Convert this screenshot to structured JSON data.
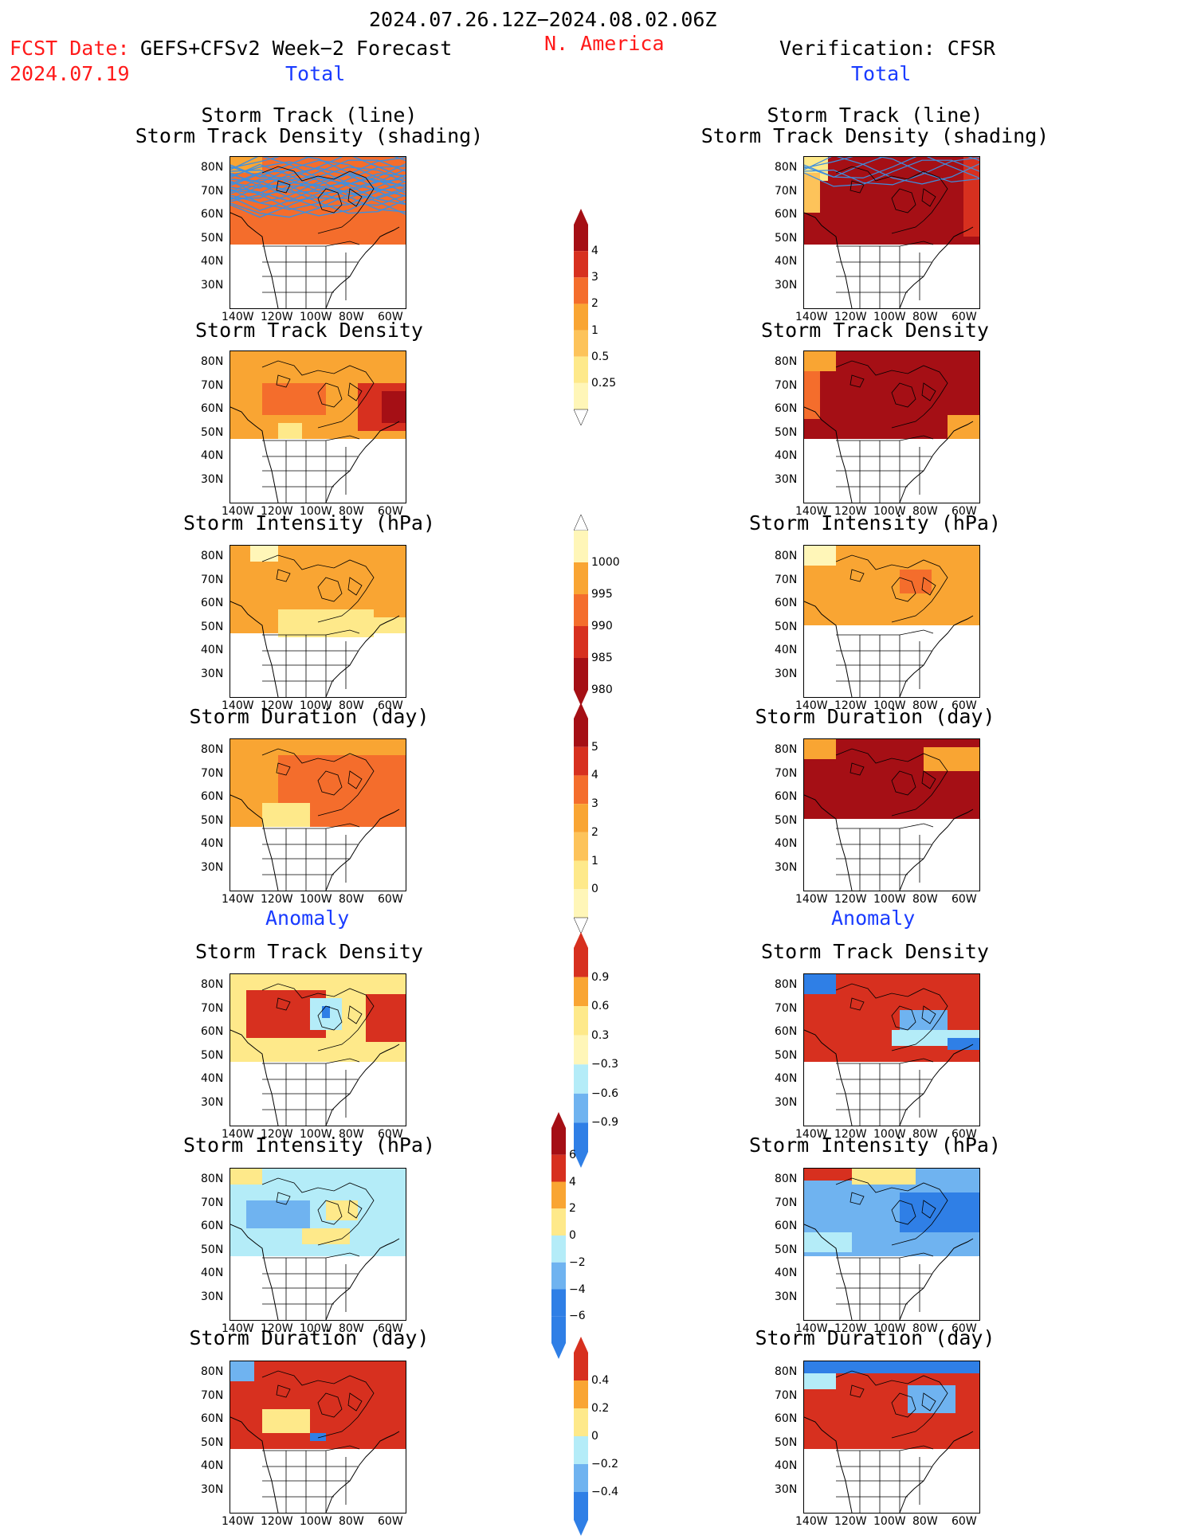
{
  "header": {
    "date_range": "2024.07.26.12Z−2024.08.02.06Z",
    "fcst_label": "FCST Date:",
    "fcst_model": "GEFS+CFSv2 Week−2 Forecast",
    "fcst_date": "2024.07.19",
    "region": "N. America",
    "verification": "Verification: CFSR"
  },
  "sections": {
    "total": "Total",
    "anomaly": "Anomaly"
  },
  "panel_titles": {
    "track_line": "Storm Track (line)",
    "track_shading": "Storm Track Density (shading)",
    "density": "Storm Track Density",
    "intensity": "Storm Intensity (hPa)",
    "duration": "Storm Duration (day)"
  },
  "lat_labels": [
    "80N",
    "70N",
    "60N",
    "50N",
    "40N",
    "30N"
  ],
  "lon_labels": [
    "140W",
    "120W",
    "100W",
    "80W",
    "60W"
  ],
  "colorbars": {
    "density_total": [
      "4",
      "3",
      "2",
      "1",
      "0.5",
      "0.25"
    ],
    "intensity_total": [
      "1000",
      "995",
      "990",
      "985",
      "980"
    ],
    "duration_total": [
      "5",
      "4",
      "3",
      "2",
      "1",
      "0"
    ],
    "density_anom": [
      "0.9",
      "0.6",
      "0.3",
      "−0.3",
      "−0.6",
      "−0.9"
    ],
    "intensity_anom": [
      "6",
      "4",
      "2",
      "0",
      "−2",
      "−4",
      "−6"
    ],
    "duration_anom": [
      "0.4",
      "0.2",
      "0",
      "−0.2",
      "−0.4"
    ]
  },
  "colors": {
    "dark_red": "#a50f15",
    "red": "#d7301f",
    "orange_red": "#f46d2c",
    "orange": "#f9a533",
    "light_orange": "#fdc35a",
    "yellow": "#fee98a",
    "pale_yellow": "#fff6b8",
    "light_blue": "#b4ecf8",
    "mid_blue": "#6fb3f0",
    "blue": "#2f7fe6",
    "track_blue": "#3d8fe0"
  }
}
